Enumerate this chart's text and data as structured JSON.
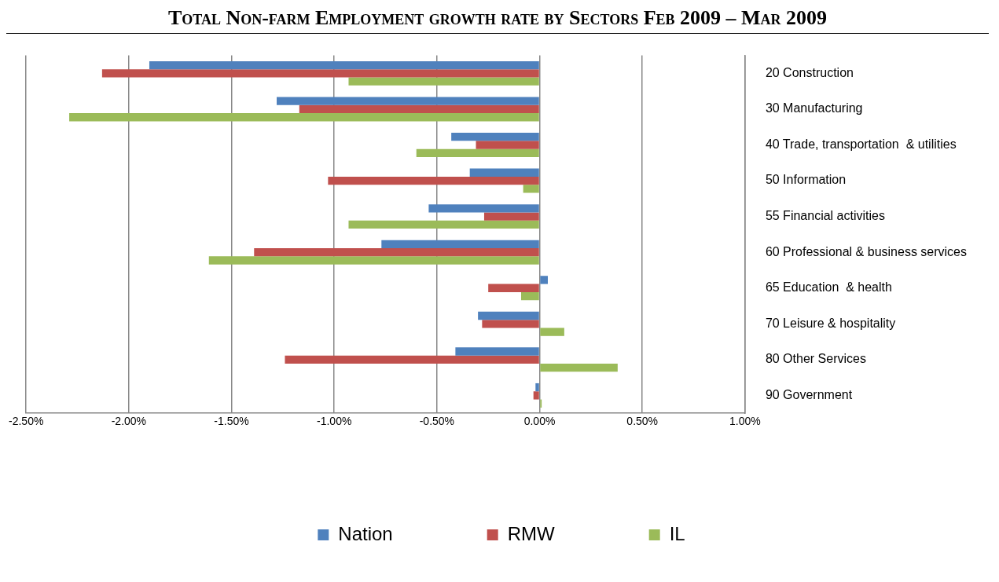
{
  "chart_data": {
    "type": "bar",
    "orientation": "horizontal",
    "title": "Total Non-farm Employment growth rate by Sectors Feb 2009 –  Mar 2009",
    "categories": [
      "20 Construction",
      "30 Manufacturing",
      "40 Trade, transportation  & utilities",
      "50 Information",
      "55 Financial activities",
      "60 Professional & business services",
      "65 Education  & health",
      "70 Leisure & hospitality",
      "80 Other Services",
      "90 Government"
    ],
    "series": [
      {
        "name": "Nation",
        "color": "#4f81bd",
        "values": [
          -1.9,
          -1.28,
          -0.43,
          -0.34,
          -0.54,
          -0.77,
          0.04,
          -0.3,
          -0.41,
          -0.02
        ]
      },
      {
        "name": "RMW",
        "color": "#c0504d",
        "values": [
          -2.13,
          -1.17,
          -0.31,
          -1.03,
          -0.27,
          -1.39,
          -0.25,
          -0.28,
          -1.24,
          -0.03
        ]
      },
      {
        "name": "IL",
        "color": "#9bbb59",
        "values": [
          -0.93,
          -2.29,
          -0.6,
          -0.08,
          -0.93,
          -1.61,
          -0.09,
          0.12,
          0.38,
          0.01
        ]
      }
    ],
    "xlim": [
      -2.5,
      1.0
    ],
    "xticks": [
      {
        "value": -2.5,
        "label": "-2.50%"
      },
      {
        "value": -2.0,
        "label": "-2.00%"
      },
      {
        "value": -1.5,
        "label": "-1.50%"
      },
      {
        "value": -1.0,
        "label": "-1.00%"
      },
      {
        "value": -0.5,
        "label": "-0.50%"
      },
      {
        "value": 0,
        "label": "0.00%"
      },
      {
        "value": 0.5,
        "label": "0.50%"
      },
      {
        "value": 1.0,
        "label": "1.00%"
      }
    ],
    "grid": "x",
    "legend": "bottom"
  }
}
